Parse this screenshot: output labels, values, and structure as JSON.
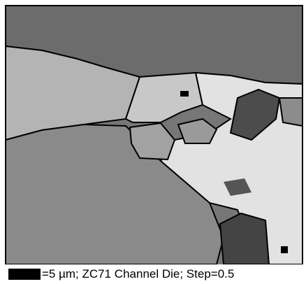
{
  "caption": "=5 µm; ZC71 Channel Die; Step=0.5"
}
